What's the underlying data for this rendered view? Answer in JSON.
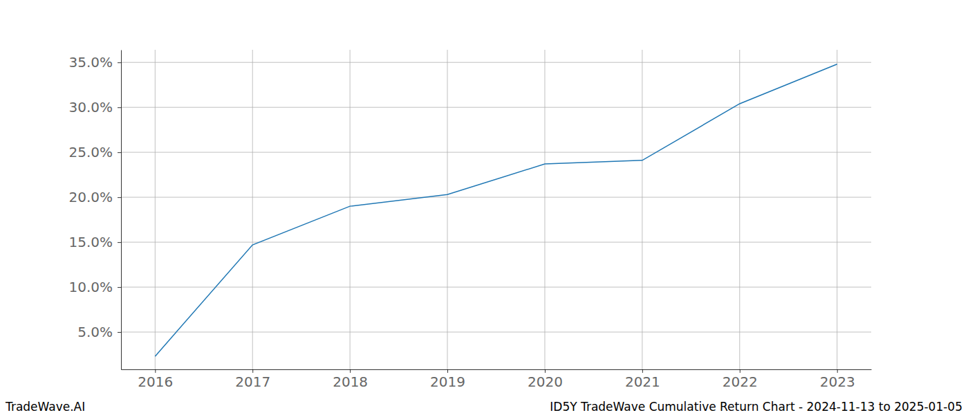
{
  "chart_data": {
    "type": "line",
    "title": "ID5Y TradeWave Cumulative Return Chart - 2024-11-13 to 2025-01-05",
    "annotations": [
      "TradeWave.AI"
    ],
    "x": [
      2016,
      2017,
      2018,
      2019,
      2020,
      2021,
      2022,
      2023
    ],
    "values": [
      2.3,
      14.7,
      19.0,
      20.3,
      23.7,
      24.1,
      30.4,
      34.8
    ],
    "color": "#1f77b4",
    "xlim": [
      2015.65,
      2023.35
    ],
    "xticks": [
      2016,
      2017,
      2018,
      2019,
      2020,
      2021,
      2022,
      2023
    ],
    "ylim": [
      0.85,
      36.4
    ],
    "yticks": [
      {
        "value": 5,
        "label": "5.0%"
      },
      {
        "value": 10,
        "label": "10.0%"
      },
      {
        "value": 15,
        "label": "15.0%"
      },
      {
        "value": 20,
        "label": "20.0%"
      },
      {
        "value": 25,
        "label": "25.0%"
      },
      {
        "value": 30,
        "label": "30.0%"
      },
      {
        "value": 35,
        "label": "35.0%"
      }
    ],
    "grid": true
  }
}
